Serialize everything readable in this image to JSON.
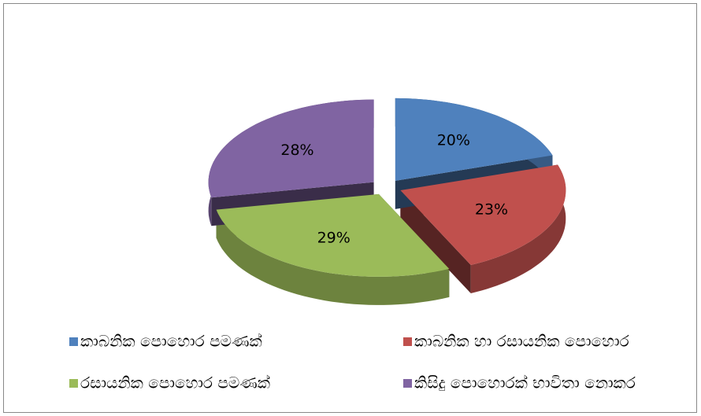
{
  "chart_data": {
    "type": "pie3d",
    "categories": [
      "කාබනික පොහොර පමණක්",
      "කාබනික හා රසායනික පොහොර",
      "රසායනික පොහොර පමණක්",
      "කිසිදු පොහොරක් භාවිතා නොකර"
    ],
    "values": [
      20,
      23,
      29,
      28
    ],
    "value_labels": [
      "20%",
      "23%",
      "29%",
      "28%"
    ],
    "colors": [
      "#4f81bd",
      "#c0504d",
      "#9bbb59",
      "#8064a2"
    ],
    "legend": "bottom"
  }
}
